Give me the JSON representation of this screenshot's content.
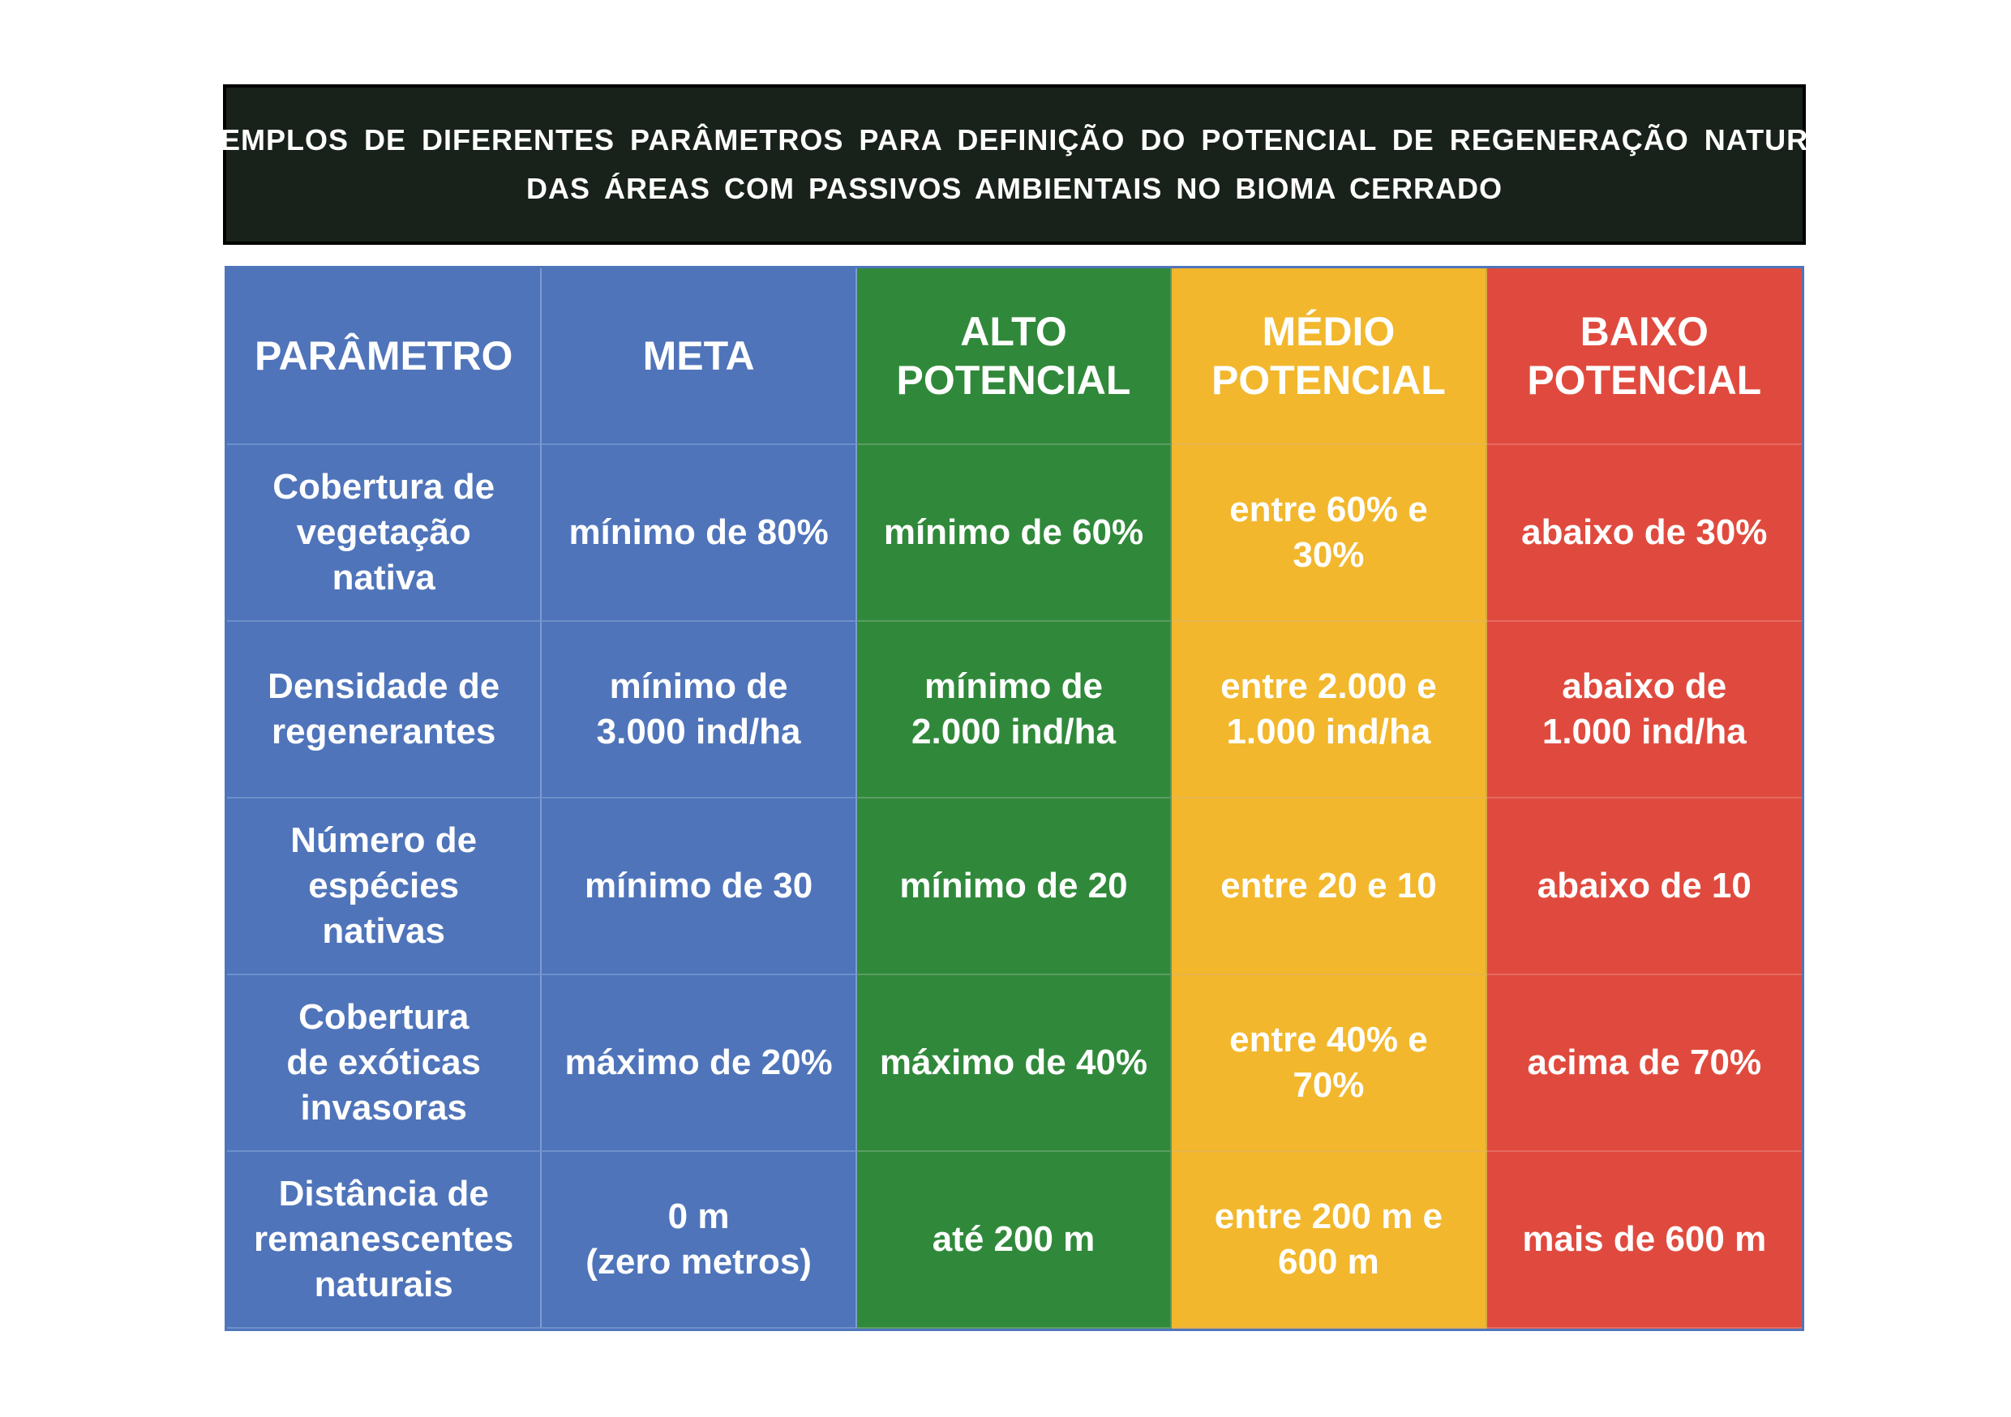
{
  "title": {
    "line1": "EXEMPLOS DE DIFERENTES PARÂMETROS PARA DEFINIÇÃO DO POTENCIAL DE REGENERAÇÃO NATURAL",
    "line2": "DAS ÁREAS COM PASSIVOS AMBIENTAIS NO BIOMA CERRADO"
  },
  "colors": {
    "title_bg": "#19221a",
    "parametro": "#4f74ba",
    "meta": "#4f74ba",
    "alto": "#30893a",
    "medio": "#f2b72c",
    "baixo": "#e04a3e"
  },
  "headers": [
    "PARÂMETRO",
    "META",
    "ALTO\nPOTENCIAL",
    "MÉDIO\nPOTENCIAL",
    "BAIXO\nPOTENCIAL"
  ],
  "rows": [
    [
      "Cobertura de\nvegetação\nnativa",
      "mínimo de 80%",
      "mínimo de 60%",
      "entre 60% e\n30%",
      "abaixo de 30%"
    ],
    [
      "Densidade de\nregenerantes",
      "mínimo de\n3.000 ind/ha",
      "mínimo de\n2.000 ind/ha",
      "entre 2.000 e\n1.000 ind/ha",
      "abaixo de\n1.000 ind/ha"
    ],
    [
      "Número de\nespécies\nnativas",
      "mínimo de 30",
      "mínimo de 20",
      "entre 20 e 10",
      "abaixo de 10"
    ],
    [
      "Cobertura\nde exóticas\ninvasoras",
      "máximo de 20%",
      "máximo de 40%",
      "entre 40% e\n70%",
      "acima de 70%"
    ],
    [
      "Distância de\nremanescentes\nnaturais",
      "0 m\n(zero metros)",
      "até 200 m",
      "entre 200 m e\n600 m",
      "mais de 600 m"
    ]
  ]
}
